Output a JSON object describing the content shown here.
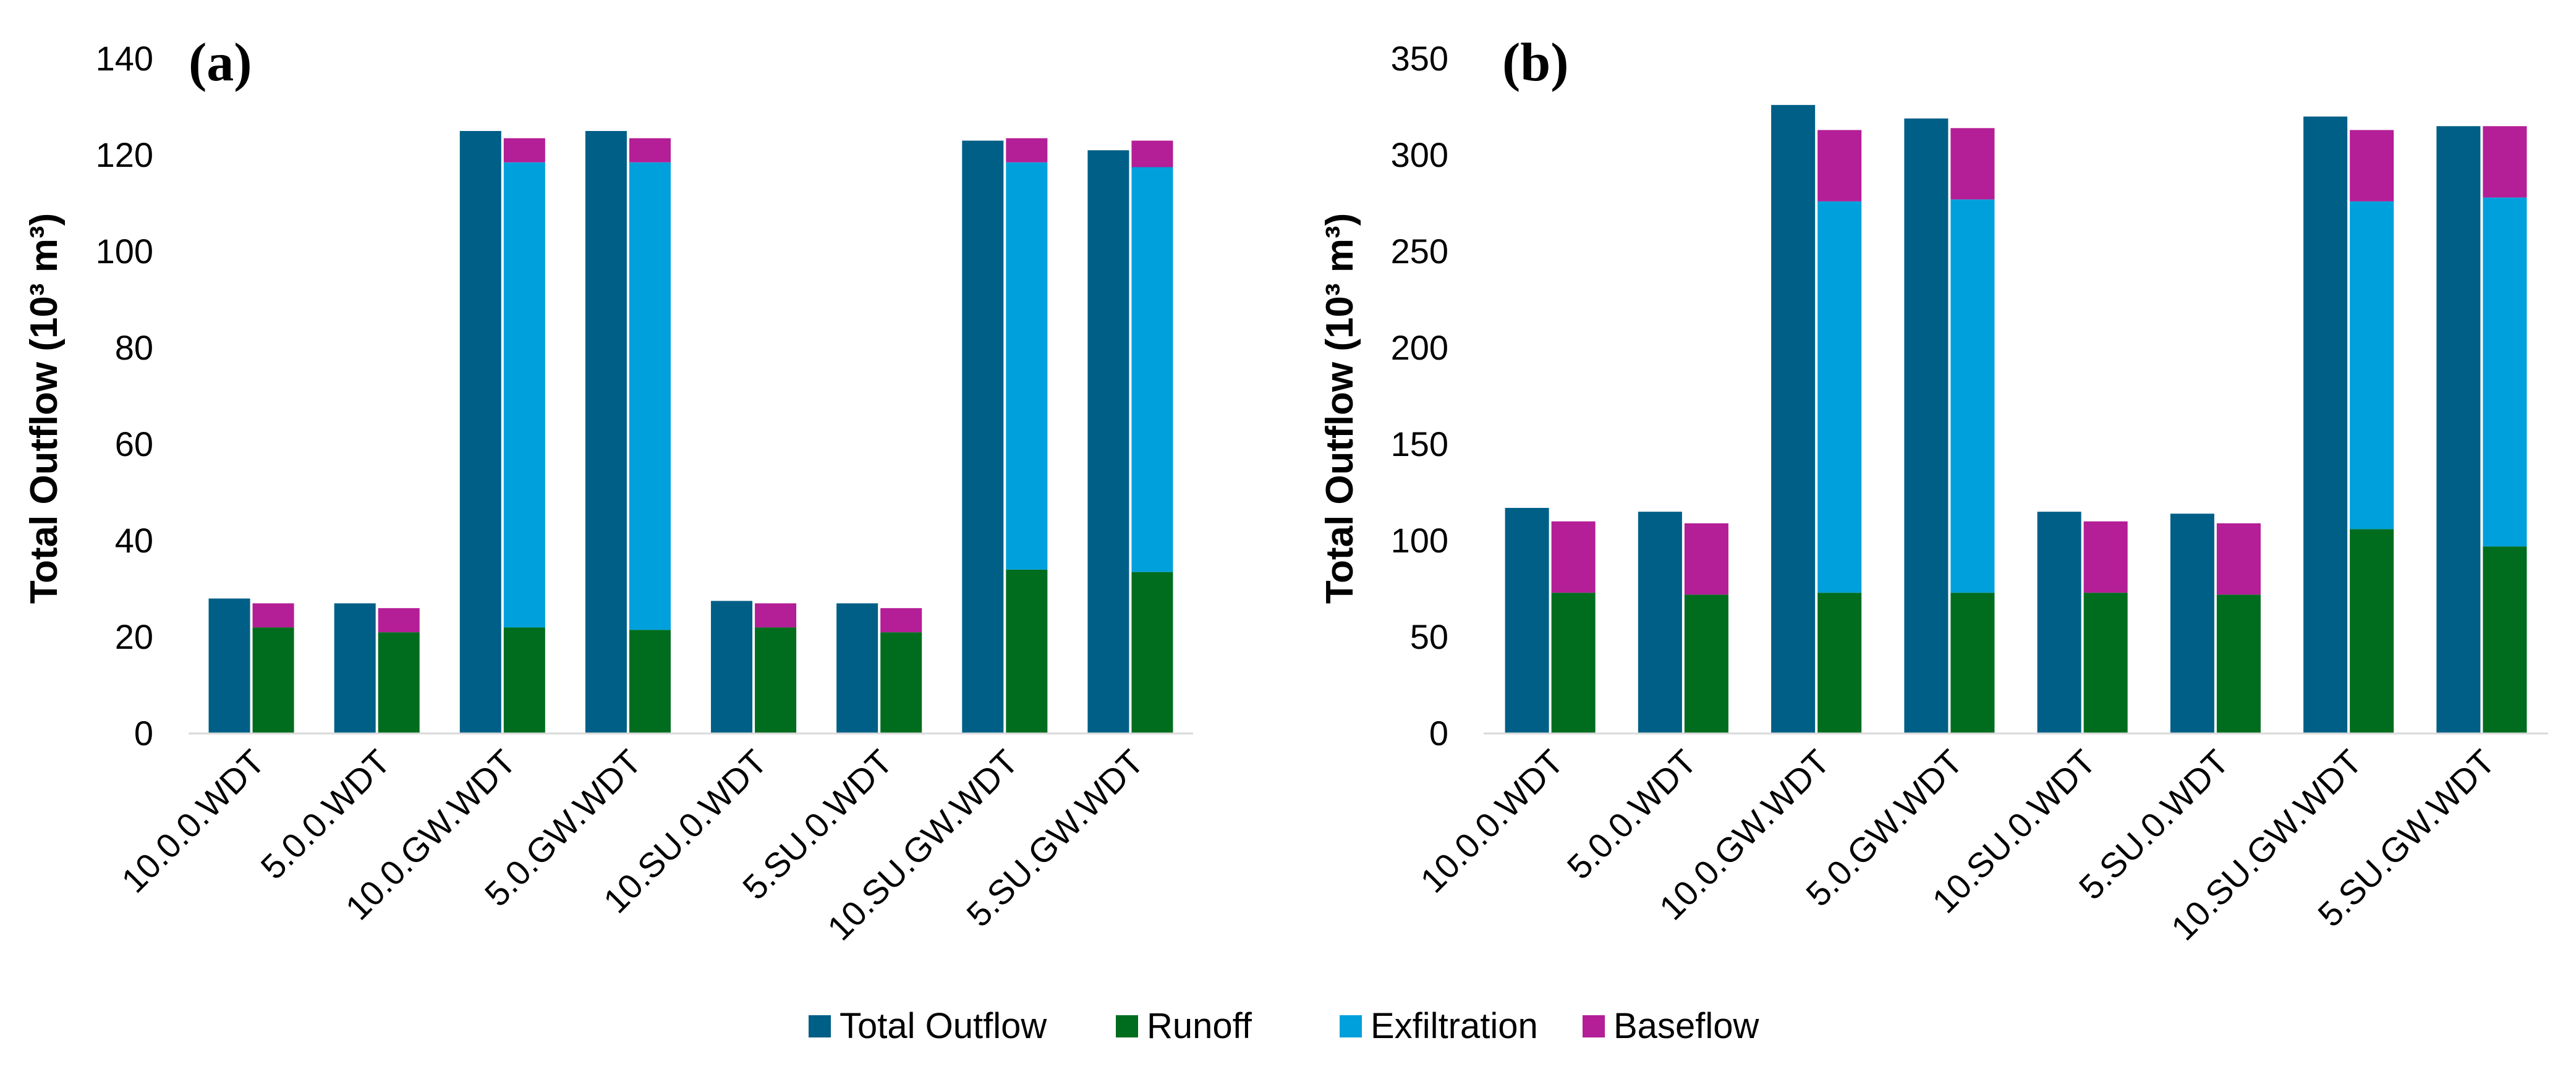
{
  "legend": [
    {
      "name": "Total Outflow",
      "color": "#005f87"
    },
    {
      "name": "Runoff",
      "color": "#006d1e"
    },
    {
      "name": "Exfiltration",
      "color": "#00a0dc"
    },
    {
      "name": "Baseflow",
      "color": "#b41e96"
    }
  ],
  "chart_data": [
    {
      "type": "bar",
      "panel_label": "(a)",
      "ylabel": "Total Outflow (10³ m³)",
      "ylim": [
        0,
        140
      ],
      "yticks": [
        0,
        20,
        40,
        60,
        80,
        100,
        120,
        140
      ],
      "categories": [
        "10.0.0.WDT",
        "5.0.0.WDT",
        "10.0.GW.WDT",
        "5.0.GW.WDT",
        "10.SU.0.WDT",
        "5.SU.0.WDT",
        "10.SU.GW.WDT",
        "5.SU.GW.WDT"
      ],
      "series": [
        {
          "name": "Total Outflow",
          "stack": "total",
          "values": [
            28,
            27,
            125,
            125,
            27.5,
            27,
            123,
            121
          ]
        },
        {
          "name": "Runoff",
          "stack": "components",
          "values": [
            22,
            21,
            22,
            21.5,
            22,
            21,
            34,
            33.5
          ]
        },
        {
          "name": "Exfiltration",
          "stack": "components",
          "values": [
            0,
            0,
            96.5,
            97,
            0,
            0,
            84.5,
            84
          ]
        },
        {
          "name": "Baseflow",
          "stack": "components",
          "values": [
            5,
            5,
            5,
            5,
            5,
            5,
            5,
            5.5
          ]
        }
      ]
    },
    {
      "type": "bar",
      "panel_label": "(b)",
      "ylabel": "Total Outflow (10³ m³)",
      "ylim": [
        0,
        350
      ],
      "yticks": [
        0,
        50,
        100,
        150,
        200,
        250,
        300,
        350
      ],
      "categories": [
        "10.0.0.WDT",
        "5.0.0.WDT",
        "10.0.GW.WDT",
        "5.0.GW.WDT",
        "10.SU.0.WDT",
        "5.SU.0.WDT",
        "10.SU.GW.WDT",
        "5.SU.GW.WDT"
      ],
      "series": [
        {
          "name": "Total Outflow",
          "stack": "total",
          "values": [
            117,
            115,
            326,
            319,
            115,
            114,
            320,
            315
          ]
        },
        {
          "name": "Runoff",
          "stack": "components",
          "values": [
            73,
            72,
            73,
            73,
            73,
            72,
            106,
            97
          ]
        },
        {
          "name": "Exfiltration",
          "stack": "components",
          "values": [
            0,
            0,
            203,
            204,
            0,
            0,
            170,
            181
          ]
        },
        {
          "name": "Baseflow",
          "stack": "components",
          "values": [
            37,
            37,
            37,
            37,
            37,
            37,
            37,
            37
          ]
        }
      ]
    }
  ]
}
